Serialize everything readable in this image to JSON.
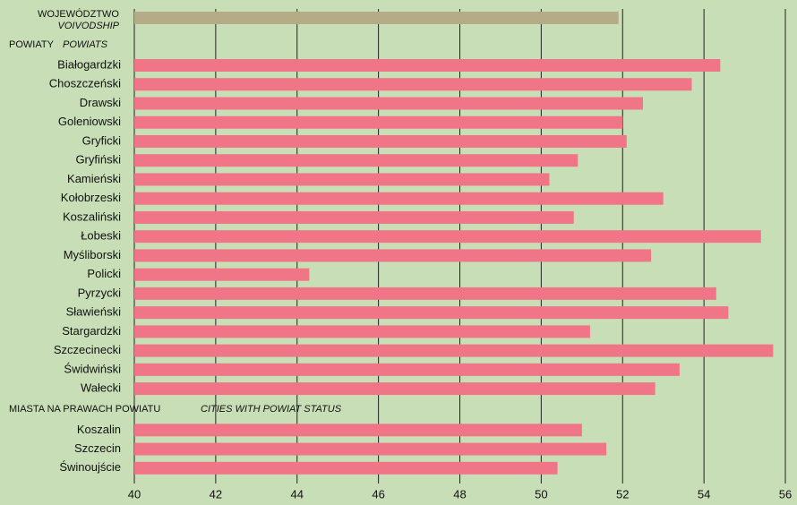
{
  "chart_data": {
    "type": "bar",
    "voivodship": {
      "label": "WOJEWÓDZTWO",
      "label_en": "VOIVODSHIP",
      "value": 51.9,
      "color": "#b5ab86"
    },
    "sections": [
      {
        "title": "POWIATY",
        "title_en": "POWIATS",
        "categories": [
          "Białogardzki",
          "Choszczeński",
          "Drawski",
          "Goleniowski",
          "Gryficki",
          "Gryfiński",
          "Kamieński",
          "Kołobrzeski",
          "Koszaliński",
          "Łobeski",
          "Myśliborski",
          "Policki",
          "Pyrzycki",
          "Sławieński",
          "Stargardzki",
          "Szczecinecki",
          "Świdwiński",
          "Wałecki"
        ],
        "values": [
          54.4,
          53.7,
          52.5,
          52.0,
          52.1,
          50.9,
          50.2,
          53.0,
          50.8,
          55.4,
          52.7,
          44.3,
          54.3,
          54.6,
          51.2,
          55.7,
          53.4,
          52.8
        ]
      },
      {
        "title": "MIASTA NA PRAWACH POWIATU",
        "title_en": "CITIES WITH POWIAT STATUS",
        "categories": [
          "Koszalin",
          "Szczecin",
          "Świnoujście"
        ],
        "values": [
          51.0,
          51.6,
          50.4
        ]
      }
    ],
    "color": "#f07587",
    "xlim": [
      40,
      56
    ],
    "xticks": [
      40,
      42,
      44,
      46,
      48,
      50,
      52,
      54,
      56
    ],
    "grid": true
  }
}
